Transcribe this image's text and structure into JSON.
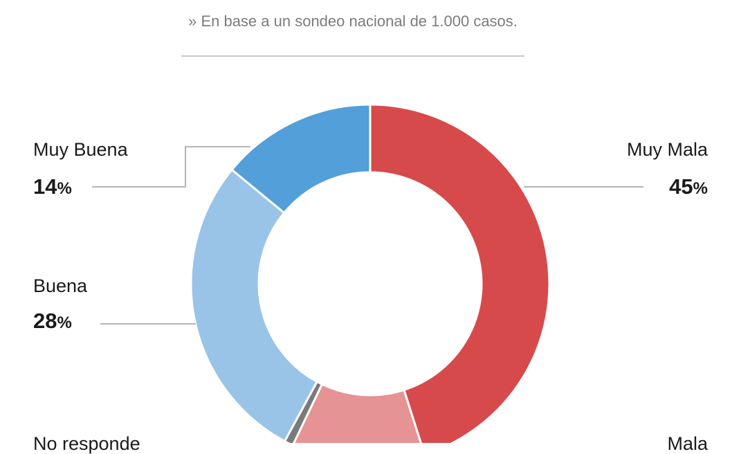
{
  "subtitle": "» En base a un sondeo nacional de 1.000 casos.",
  "chart_data": {
    "type": "pie",
    "style": "donut",
    "slices": [
      {
        "label": "Muy Mala",
        "value": 45,
        "display": "45",
        "color": "#d64a4b"
      },
      {
        "label": "Mala",
        "value": 12,
        "display": "",
        "color": "#e59394"
      },
      {
        "label": "No responde",
        "value": 0.8,
        "display": "",
        "color": "#7a7a7a"
      },
      {
        "label": "Buena",
        "value": 28,
        "display": "28",
        "color": "#99c4e8"
      },
      {
        "label": "Muy Buena",
        "value": 14,
        "display": "14",
        "color": "#529fd9"
      }
    ],
    "percent_sign": "%",
    "cut_labels": {
      "no_responde": "No responde",
      "mala": "Mala"
    }
  }
}
